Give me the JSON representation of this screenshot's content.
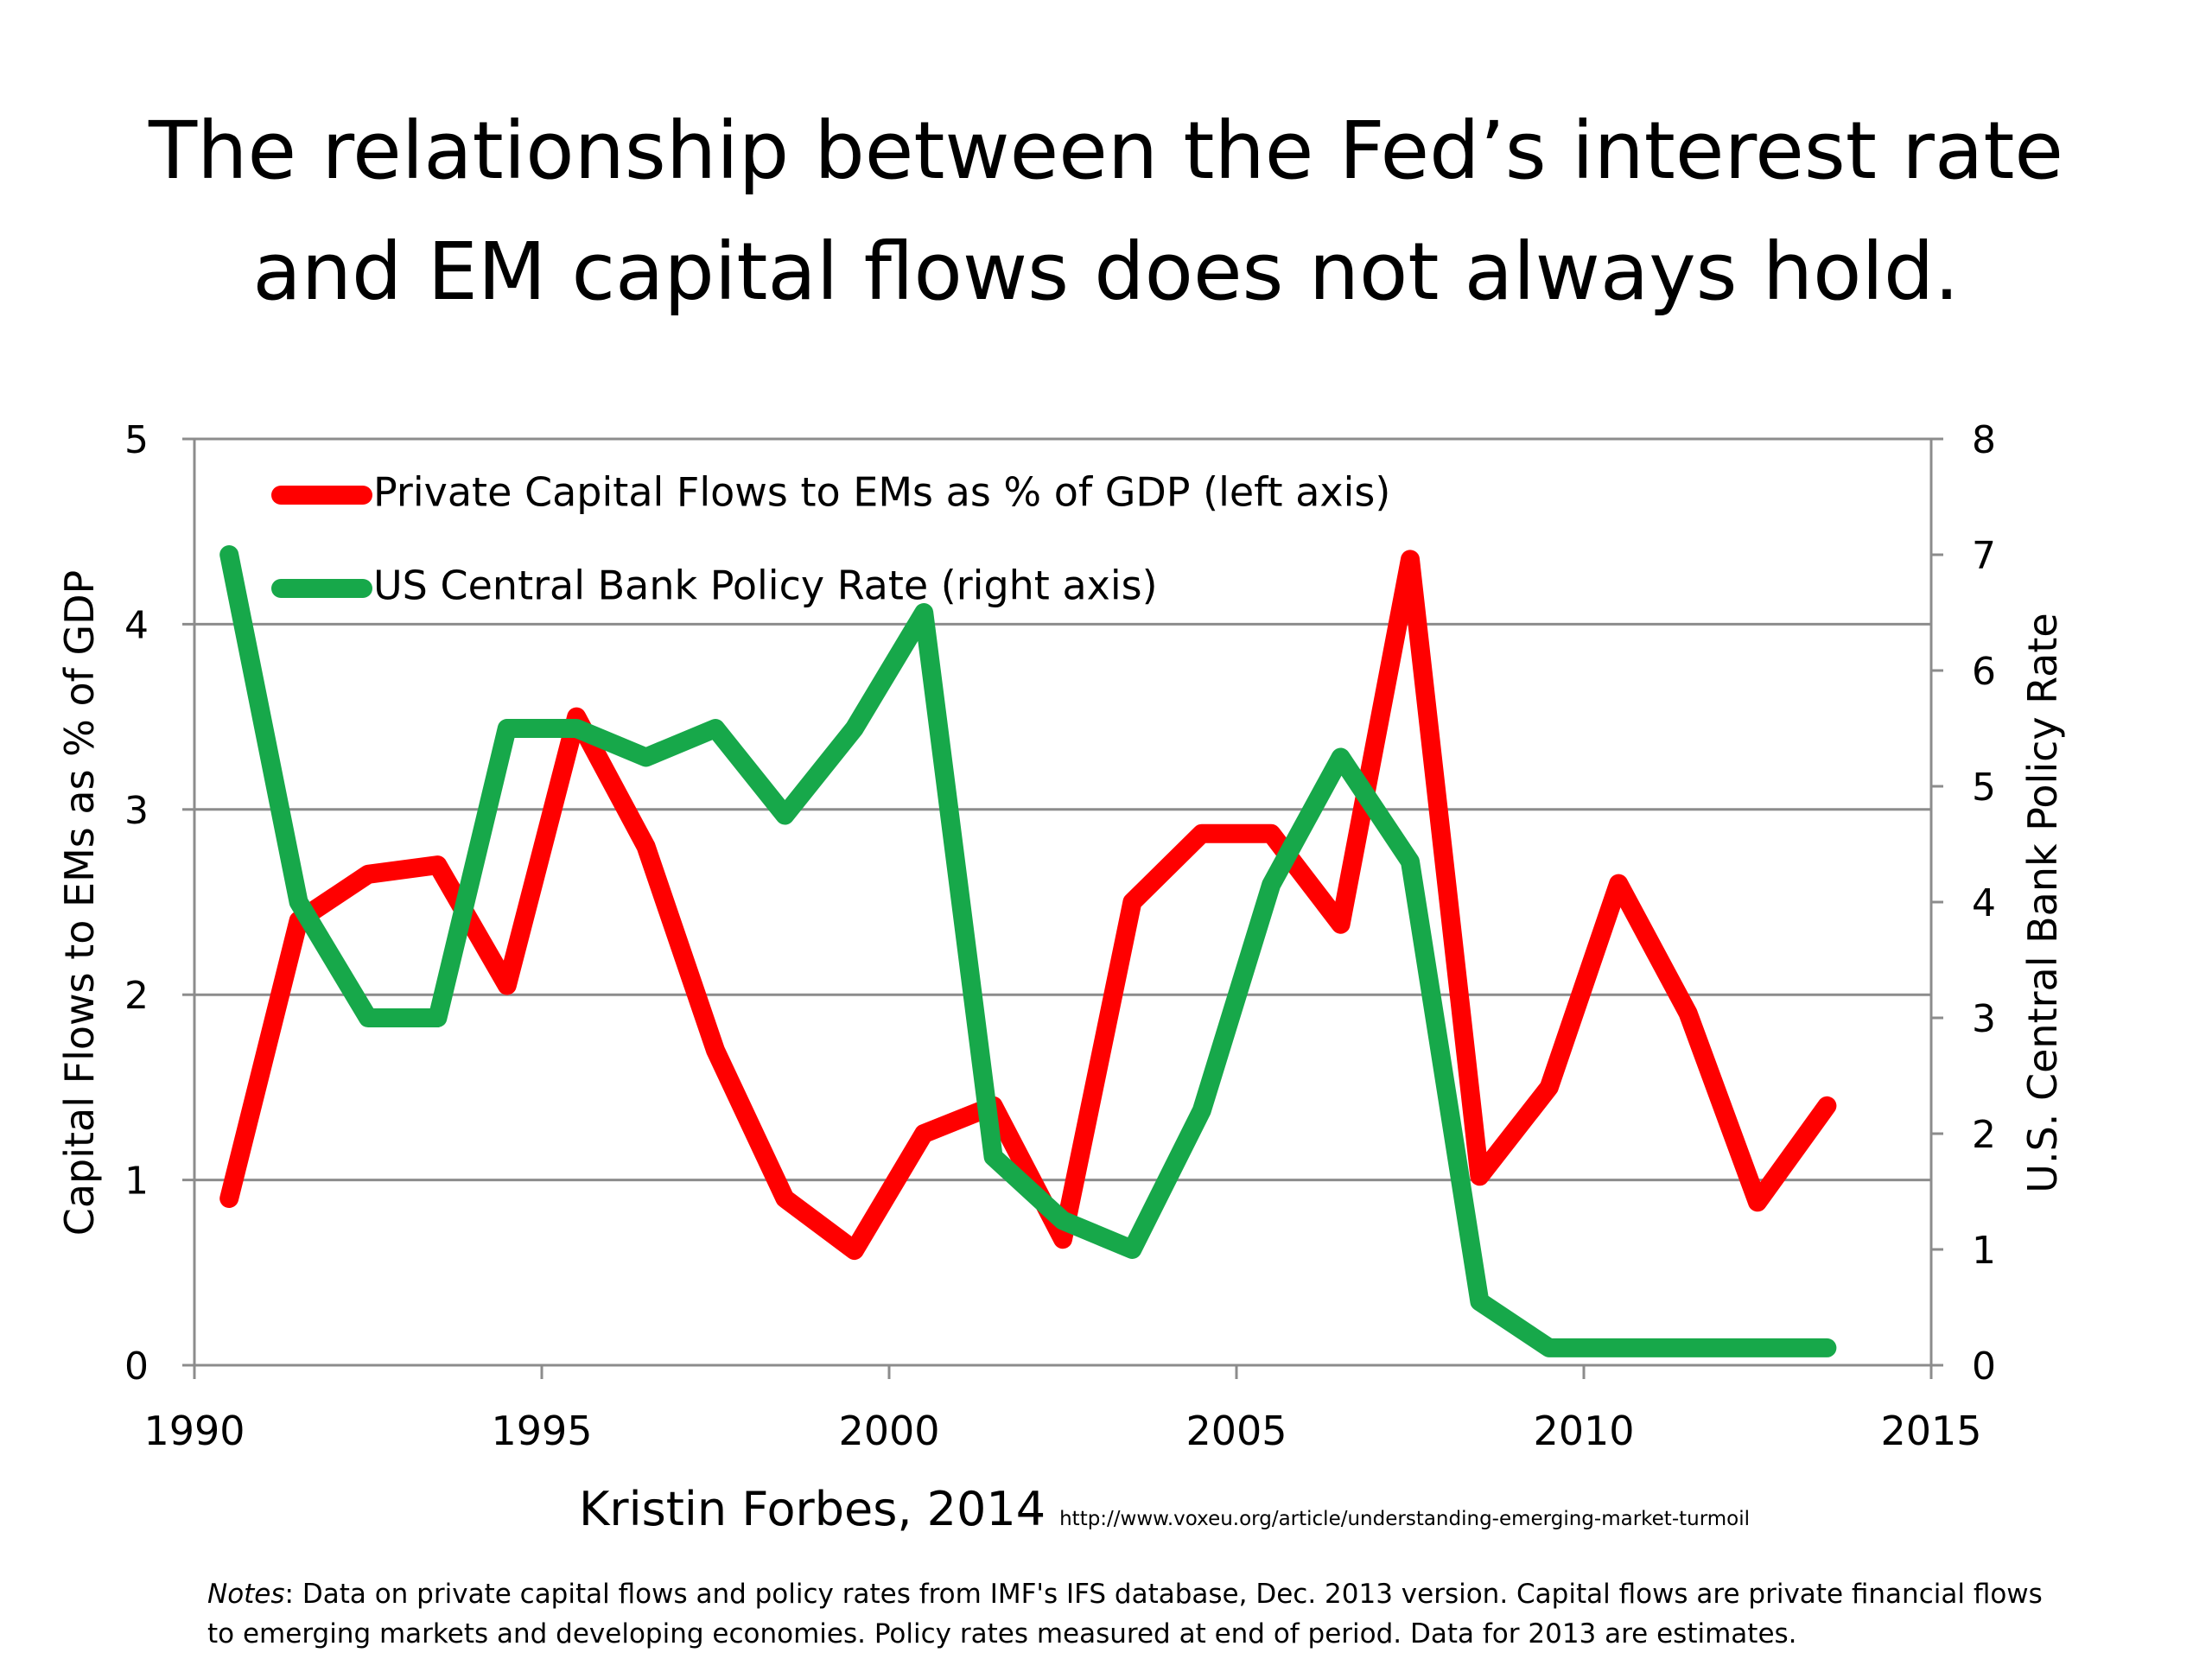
{
  "title": {
    "line1": "The relationship between the Fed’s interest rate",
    "line2": "and EM capital flows does not always hold."
  },
  "credit": {
    "author": "Kristin Forbes, 2014",
    "url": "http://www.voxeu.org/article/understanding-emerging-market-turmoil"
  },
  "notes": {
    "label": "Notes",
    "text": ": Data on private capital flows and policy rates from IMF's IFS database, Dec. 2013 version. Capital flows are private financial flows to emerging markets and developing economies. Policy rates measured at end of period. Data for 2013 are estimates."
  },
  "colors": {
    "capital_flows": "#ff0000",
    "policy_rate": "#17a84a",
    "gridline": "#8c8c8c",
    "text": "#000000"
  },
  "chart_data": {
    "type": "line",
    "title": "",
    "xlabel": "",
    "ylabel": "Capital Flows to EMs as % of GDP",
    "y2label": "U.S. Central Bank Policy Rate",
    "xlim": [
      1990,
      2015
    ],
    "ylim": [
      0,
      5
    ],
    "y2lim": [
      0,
      8
    ],
    "x_ticks": [
      1990,
      1995,
      2000,
      2005,
      2010,
      2015
    ],
    "y_ticks": [
      0,
      1,
      2,
      3,
      4,
      5
    ],
    "y2_ticks": [
      0,
      1,
      2,
      3,
      4,
      5,
      6,
      7,
      8
    ],
    "grid": true,
    "legend_position": "top-left",
    "series": [
      {
        "name": "Private Capital Flows to EMs as % of GDP (left axis)",
        "axis": "left",
        "x": [
          1990,
          1991,
          1992,
          1993,
          1994,
          1995,
          1996,
          1997,
          1998,
          1999,
          2000,
          2001,
          2002,
          2003,
          2004,
          2005,
          2006,
          2007,
          2008,
          2009,
          2010,
          2011,
          2012,
          2013
        ],
        "values": [
          0.9,
          2.4,
          2.65,
          2.7,
          2.05,
          3.5,
          2.8,
          1.7,
          0.9,
          0.62,
          1.25,
          1.4,
          0.68,
          2.5,
          2.87,
          2.87,
          2.38,
          4.35,
          1.02,
          1.5,
          2.6,
          1.9,
          0.88,
          1.4
        ]
      },
      {
        "name": "US Central Bank Policy Rate (right axis)",
        "axis": "right",
        "x": [
          1990,
          1991,
          1992,
          1993,
          1994,
          1995,
          1996,
          1997,
          1998,
          1999,
          2000,
          2001,
          2002,
          2003,
          2004,
          2005,
          2006,
          2007,
          2008,
          2009,
          2010,
          2011,
          2012,
          2013
        ],
        "values": [
          7.0,
          4.0,
          3.0,
          3.0,
          5.5,
          5.5,
          5.25,
          5.5,
          4.75,
          5.5,
          6.5,
          1.8,
          1.25,
          1.0,
          2.2,
          4.15,
          5.25,
          4.35,
          0.55,
          0.15,
          0.15,
          0.15,
          0.15,
          0.15
        ]
      }
    ]
  }
}
